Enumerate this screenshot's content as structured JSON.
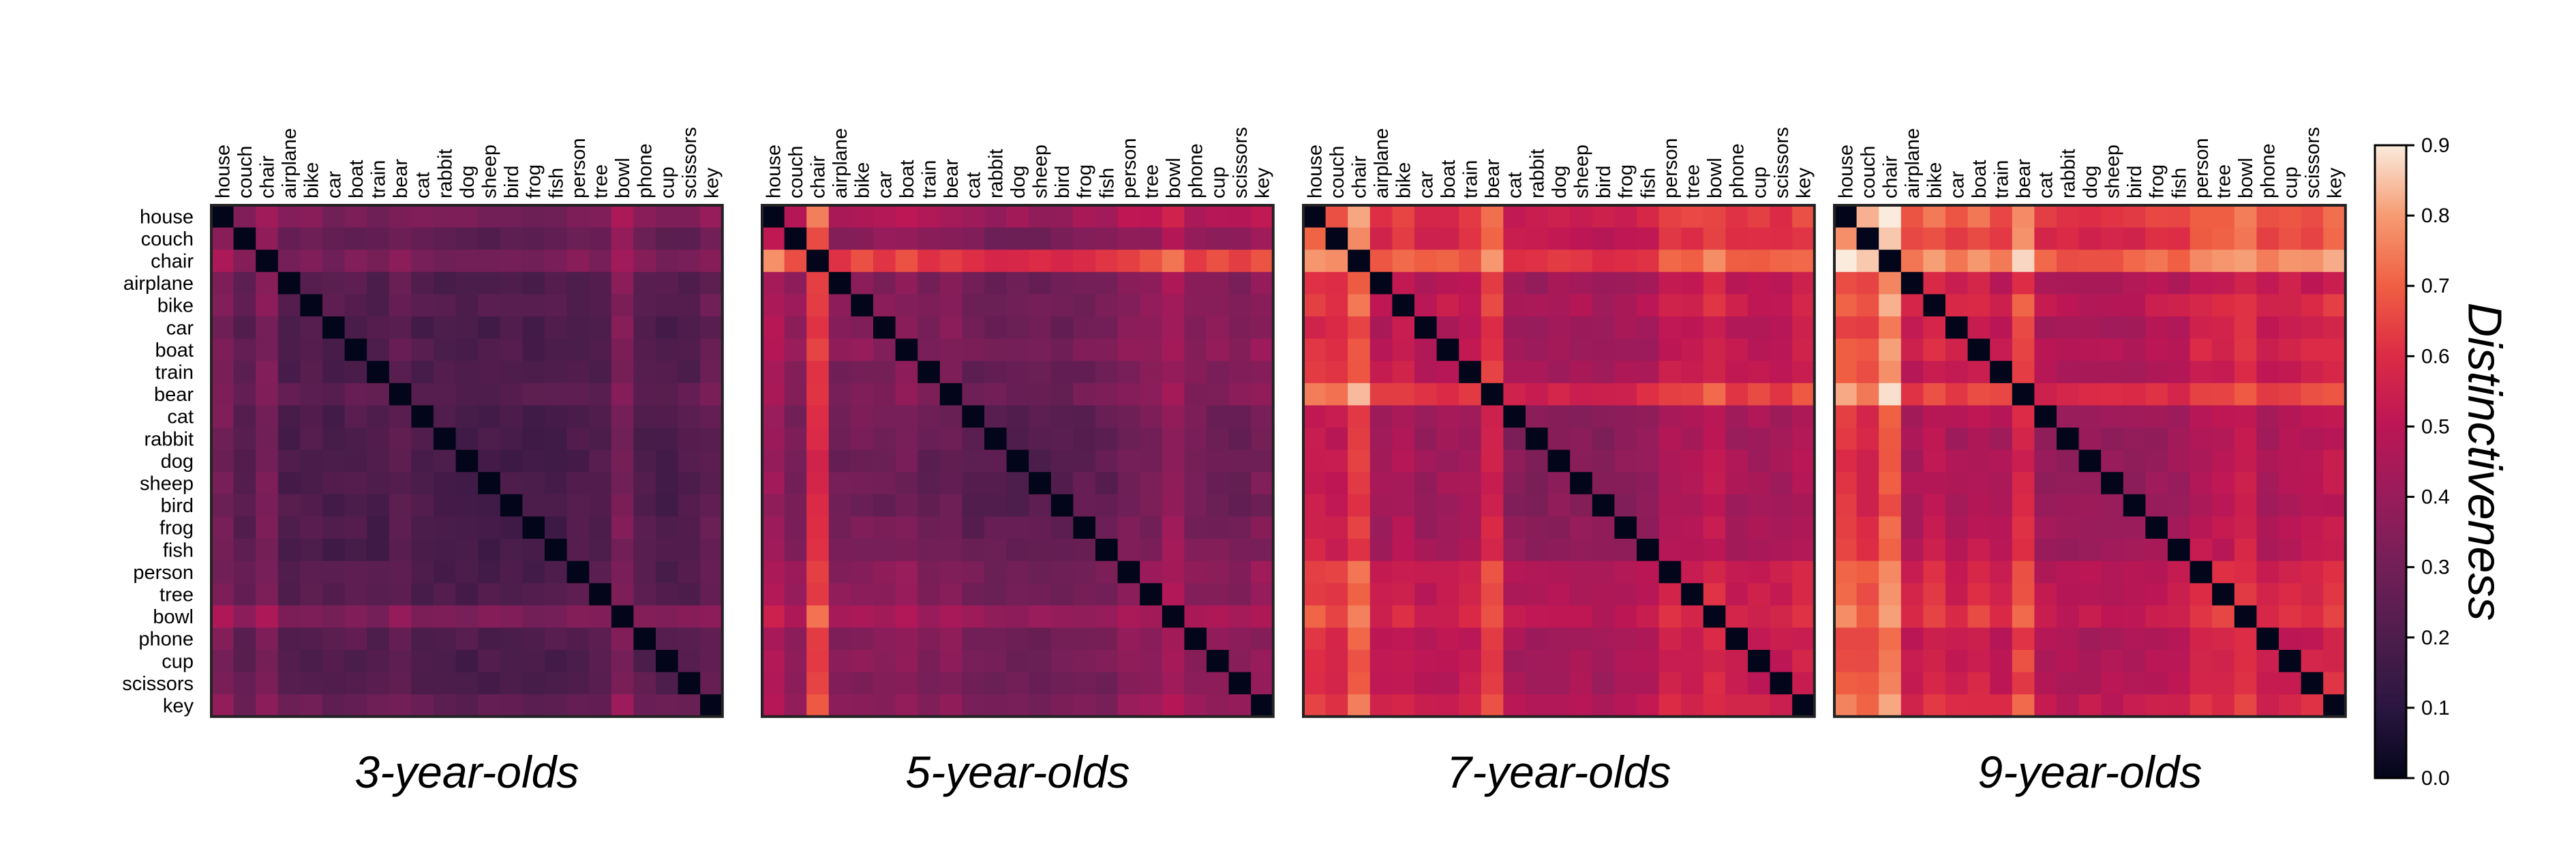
{
  "chart_data": {
    "type": "heatmap",
    "labels": [
      "house",
      "couch",
      "chair",
      "airplane",
      "bike",
      "car",
      "boat",
      "train",
      "bear",
      "cat",
      "rabbit",
      "dog",
      "sheep",
      "bird",
      "frog",
      "fish",
      "person",
      "tree",
      "bowl",
      "phone",
      "cup",
      "scissors",
      "key"
    ],
    "panels": [
      {
        "title": "3-year-olds",
        "base": 0.22,
        "row_effects": [
          0.1,
          0.03,
          0.11,
          0.0,
          0.01,
          -0.01,
          0.0,
          -0.01,
          0.03,
          -0.01,
          -0.02,
          -0.02,
          -0.02,
          -0.02,
          -0.02,
          -0.02,
          0.0,
          0.0,
          0.12,
          0.01,
          -0.01,
          0.0,
          0.05
        ]
      },
      {
        "title": "5-year-olds",
        "base": 0.3,
        "row_effects": [
          0.14,
          0.05,
          0.32,
          0.02,
          0.03,
          0.02,
          0.04,
          0.0,
          0.02,
          -0.03,
          -0.04,
          -0.04,
          -0.04,
          -0.04,
          -0.02,
          -0.01,
          0.04,
          0.04,
          0.12,
          0.03,
          0.03,
          0.02,
          0.05
        ]
      },
      {
        "title": "7-year-olds",
        "base": 0.44,
        "row_effects": [
          0.14,
          0.12,
          0.22,
          0.02,
          0.06,
          0.01,
          0.02,
          0.04,
          0.16,
          -0.04,
          -0.05,
          -0.04,
          -0.04,
          -0.05,
          -0.03,
          -0.02,
          0.06,
          0.06,
          0.1,
          0.04,
          0.04,
          0.04,
          0.08
        ]
      },
      {
        "title": "9-year-olds",
        "base": 0.47,
        "row_effects": [
          0.18,
          0.15,
          0.26,
          0.02,
          0.07,
          0.02,
          0.06,
          0.02,
          0.14,
          -0.03,
          -0.05,
          -0.04,
          -0.04,
          -0.04,
          -0.02,
          -0.01,
          0.05,
          0.06,
          0.1,
          0.02,
          0.04,
          0.04,
          0.08
        ]
      }
    ],
    "colorbar": {
      "label": "Distinctiveness",
      "range": [
        0.0,
        0.9
      ],
      "ticks": [
        "0.0",
        "0.1",
        "0.2",
        "0.3",
        "0.4",
        "0.5",
        "0.6",
        "0.7",
        "0.8",
        "0.9"
      ]
    },
    "colormap": "rocket",
    "diagonal_value": 0.0
  }
}
